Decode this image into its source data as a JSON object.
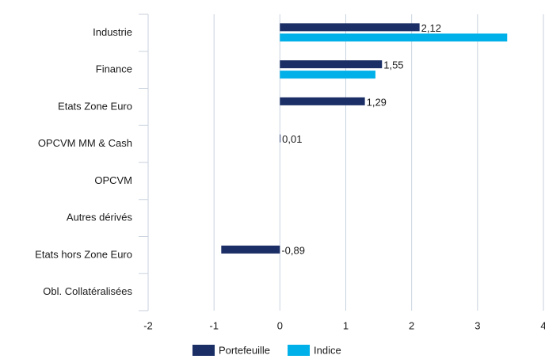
{
  "chart_data": {
    "type": "barh",
    "categories": [
      "Industrie",
      "Finance",
      "Etats Zone Euro",
      "OPCVM MM & Cash",
      "OPCVM",
      "Autres dérivés",
      "Etats hors Zone Euro",
      "Obl. Collatéralisées"
    ],
    "series": [
      {
        "name": "Portefeuille",
        "color": "#1b2f66",
        "values": [
          2.12,
          1.55,
          1.29,
          0.01,
          null,
          null,
          -0.89,
          null
        ],
        "value_labels": [
          "2,12",
          "1,55",
          "1,29",
          "0,01",
          null,
          null,
          "-0,89",
          null
        ]
      },
      {
        "name": "Indice",
        "color": "#00b0e8",
        "values": [
          3.45,
          1.45,
          null,
          null,
          null,
          null,
          null,
          null
        ]
      }
    ],
    "xlim": [
      -2,
      4
    ],
    "xticks": [
      -2,
      -1,
      0,
      1,
      2,
      3,
      4
    ],
    "grid": true,
    "legend": "bottom"
  }
}
